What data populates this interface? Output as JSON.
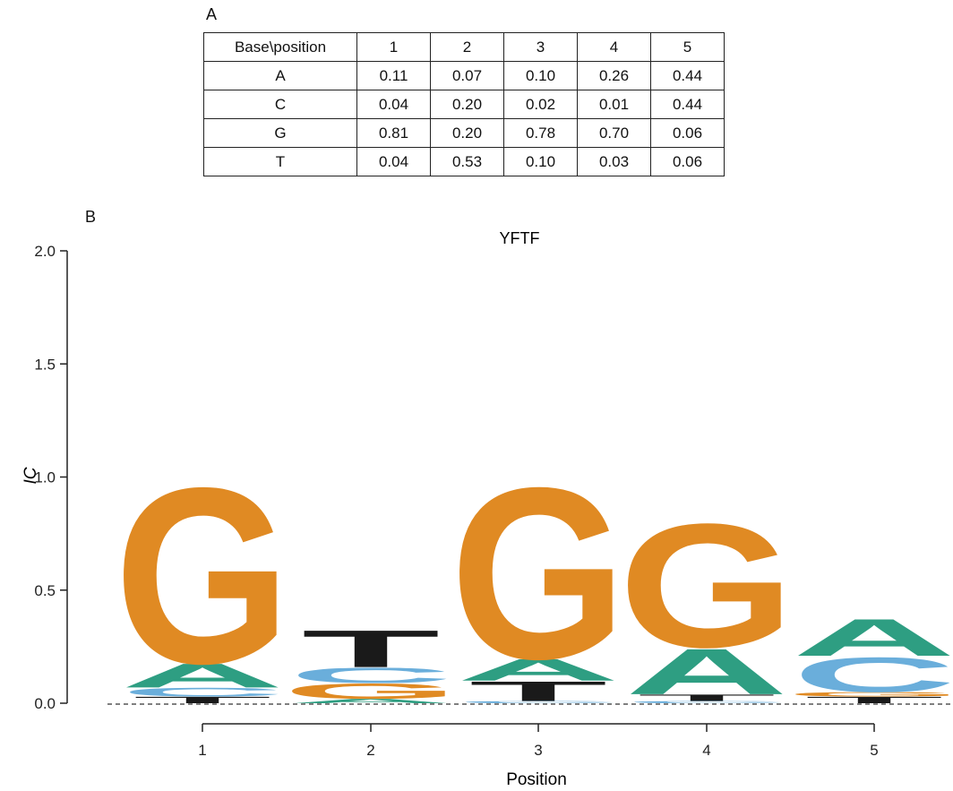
{
  "panel_a_label": "A",
  "panel_b_label": "B",
  "table": {
    "header": [
      "Base\\position",
      "1",
      "2",
      "3",
      "4",
      "5"
    ],
    "rows": [
      [
        "A",
        "0.11",
        "0.07",
        "0.10",
        "0.26",
        "0.44"
      ],
      [
        "C",
        "0.04",
        "0.20",
        "0.02",
        "0.01",
        "0.44"
      ],
      [
        "G",
        "0.81",
        "0.20",
        "0.78",
        "0.70",
        "0.06"
      ],
      [
        "T",
        "0.04",
        "0.53",
        "0.10",
        "0.03",
        "0.06"
      ]
    ]
  },
  "chart_data": {
    "type": "sequence-logo",
    "title": "YFTF",
    "xlabel": "Position",
    "ylabel": "IC",
    "ylim": [
      0,
      2.0
    ],
    "yticks": [
      "0.0",
      "0.5",
      "1.0",
      "1.5",
      "2.0"
    ],
    "positions": [
      "1",
      "2",
      "3",
      "4",
      "5"
    ],
    "base_colors": {
      "A": "#2e9e82",
      "C": "#6aaedb",
      "G": "#e08a23",
      "T": "#1a1a1a"
    },
    "stacks": [
      {
        "position": "1",
        "letters": [
          {
            "base": "T",
            "ic": 0.03
          },
          {
            "base": "C",
            "ic": 0.04
          },
          {
            "base": "A",
            "ic": 0.11
          },
          {
            "base": "G",
            "ic": 0.81
          }
        ]
      },
      {
        "position": "2",
        "letters": [
          {
            "base": "A",
            "ic": 0.02
          },
          {
            "base": "G",
            "ic": 0.07
          },
          {
            "base": "C",
            "ic": 0.07
          },
          {
            "base": "T",
            "ic": 0.17
          }
        ]
      },
      {
        "position": "3",
        "letters": [
          {
            "base": "C",
            "ic": 0.01
          },
          {
            "base": "T",
            "ic": 0.09
          },
          {
            "base": "A",
            "ic": 0.1
          },
          {
            "base": "G",
            "ic": 0.79
          }
        ]
      },
      {
        "position": "4",
        "letters": [
          {
            "base": "C",
            "ic": 0.01
          },
          {
            "base": "T",
            "ic": 0.03
          },
          {
            "base": "A",
            "ic": 0.21
          },
          {
            "base": "G",
            "ic": 0.57
          }
        ]
      },
      {
        "position": "5",
        "letters": [
          {
            "base": "T",
            "ic": 0.03
          },
          {
            "base": "G",
            "ic": 0.02
          },
          {
            "base": "C",
            "ic": 0.16
          },
          {
            "base": "A",
            "ic": 0.17
          }
        ]
      }
    ]
  }
}
